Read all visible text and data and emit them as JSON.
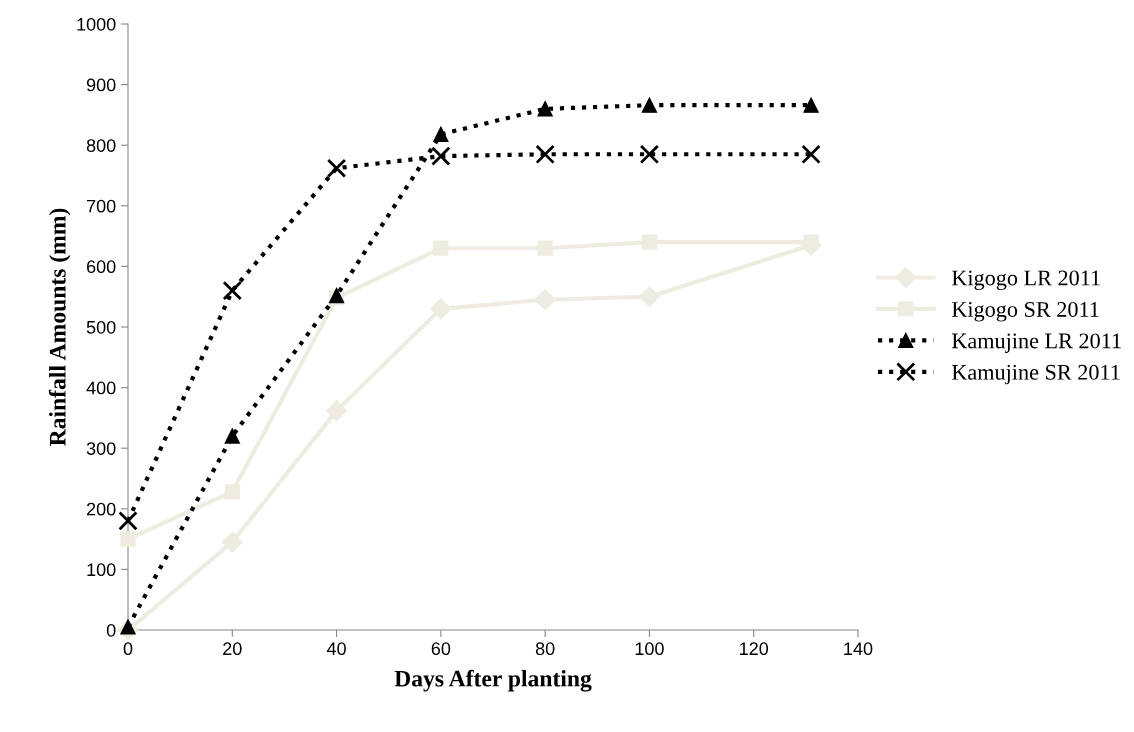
{
  "chart_data": {
    "type": "line",
    "xlabel": "Days After planting",
    "ylabel": "Rainfall Amounts (mm)",
    "x": [
      0,
      20,
      40,
      60,
      80,
      100,
      131
    ],
    "series": [
      {
        "name": "Kigogo LR 2011",
        "color": "#eeece1",
        "marker": "diamond",
        "line_style": "solid",
        "values": [
          0,
          145,
          362,
          530,
          545,
          550,
          635
        ]
      },
      {
        "name": "Kigogo SR 2011",
        "color": "#eeece1",
        "marker": "square",
        "line_style": "solid",
        "values": [
          150,
          228,
          548,
          630,
          630,
          640,
          640
        ]
      },
      {
        "name": "Kamujine LR 2011",
        "color": "#000000",
        "marker": "triangle",
        "line_style": "dotted",
        "values": [
          5,
          320,
          552,
          818,
          860,
          866,
          866
        ]
      },
      {
        "name": "Kamujine SR 2011",
        "color": "#000000",
        "marker": "cross",
        "line_style": "dotted",
        "values": [
          180,
          560,
          762,
          782,
          785,
          785,
          785
        ]
      }
    ],
    "xlim": [
      0,
      140
    ],
    "xticks": [
      0,
      20,
      40,
      60,
      80,
      100,
      120,
      140
    ],
    "ylim": [
      0,
      1000
    ],
    "yticks": [
      0,
      100,
      200,
      300,
      400,
      500,
      600,
      700,
      800,
      900,
      1000
    ],
    "grid": false,
    "legend": "right"
  }
}
